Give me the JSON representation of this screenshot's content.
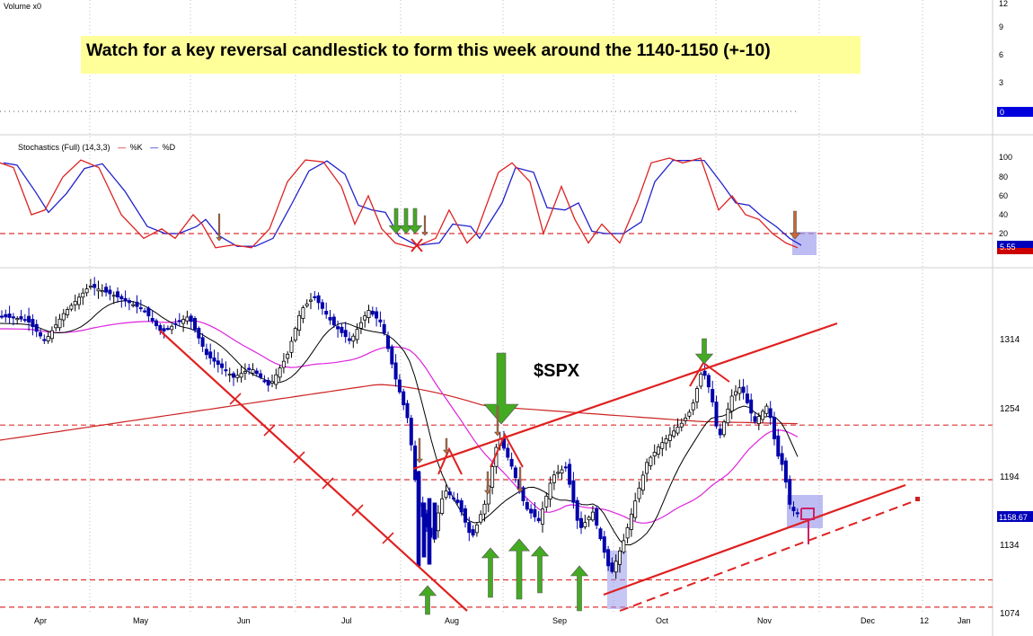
{
  "volume_panel": {
    "label": "Volume x0",
    "ticks": [
      "12",
      "9",
      "6",
      "3"
    ],
    "last_value": "0"
  },
  "annotation": {
    "text": "Watch for a key reversal candlestick to form this week around the 1140-1150 (+-10)",
    "background": "#ffff99"
  },
  "stochastics_panel": {
    "label": "Stochastics (Full) (14,3,3)",
    "legend": [
      {
        "marker": "—",
        "name": "%K",
        "color": "#cc0000"
      },
      {
        "marker": "—",
        "name": "%D",
        "color": "#0000cc"
      }
    ],
    "ticks": [
      "100",
      "80",
      "60",
      "40",
      "20"
    ],
    "last_value": "5.55",
    "oversold_level": 20
  },
  "chart_data": {
    "type": "candlestick",
    "symbol": "$SPX",
    "x_axis_labels": [
      "Apr",
      "May",
      "Jun",
      "Jul",
      "Aug",
      "Sep",
      "Oct",
      "Nov",
      "Dec",
      "12",
      "Jan"
    ],
    "y_axis_ticks": [
      "1314",
      "1254",
      "1194",
      "1134",
      "1074"
    ],
    "y_range": [
      1074,
      1314
    ],
    "last_price": "1158.67",
    "support_lines": [
      1158,
      1134,
      1090,
      1078
    ],
    "moving_averages": [
      "short (black)",
      "medium (magenta)",
      "long (red)"
    ],
    "colors": {
      "up": "#ffffff",
      "down": "#0000aa",
      "short_ma": "#000000",
      "medium_ma": "#dd22dd",
      "long_ma": "#cc2222",
      "trendline": "#e02020",
      "highlight": "#9999ee",
      "arrow_up": "#44aa22",
      "arrow_down": "#cc6633"
    }
  }
}
